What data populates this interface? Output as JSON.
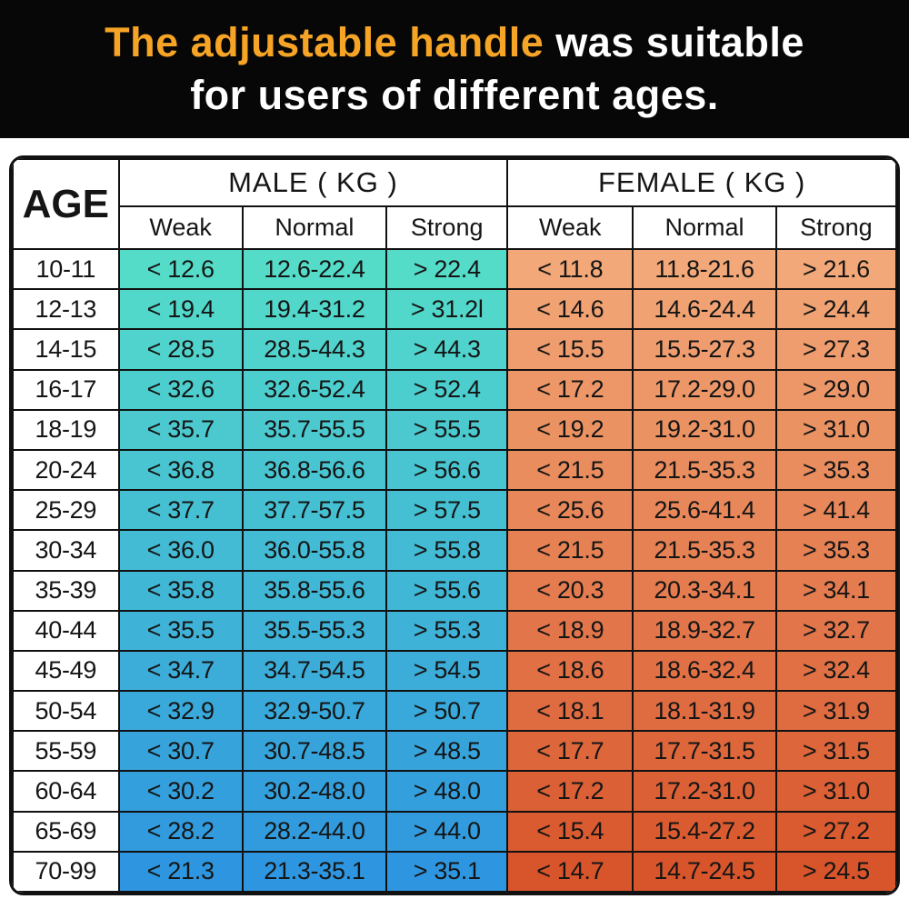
{
  "banner": {
    "title_highlight": "The adjustable handle",
    "title_rest": " was suitable",
    "title_line2": "for users of different ages.",
    "highlight_color": "#F6A426",
    "text_color": "#FFFFFF",
    "background": "#070707"
  },
  "table": {
    "age_header": "AGE",
    "group_headers": {
      "male": "MALE ( KG )",
      "female": "FEMALE ( KG )"
    },
    "sub_headers": [
      "Weak",
      "Normal",
      "Strong"
    ],
    "colors": {
      "male_gradient_top": "#55DCC9",
      "male_gradient_bottom": "#2E96E0",
      "female_gradient_top": "#F2A878",
      "female_gradient_bottom": "#D8552B",
      "border": "#111111",
      "header_bg": "#FFFFFF"
    }
  },
  "chart_data": {
    "type": "table",
    "title": "The adjustable handle was suitable for users of different ages.",
    "column_groups": [
      "AGE",
      "MALE (KG)",
      "FEMALE (KG)"
    ],
    "columns": [
      "AGE",
      "Male Weak",
      "Male Normal",
      "Male Strong",
      "Female Weak",
      "Female Normal",
      "Female Strong"
    ],
    "rows": [
      [
        "10-11",
        "< 12.6",
        "12.6-22.4",
        "> 22.4",
        "< 11.8",
        "11.8-21.6",
        "> 21.6"
      ],
      [
        "12-13",
        "< 19.4",
        "19.4-31.2",
        "> 31.2l",
        "< 14.6",
        "14.6-24.4",
        "> 24.4"
      ],
      [
        "14-15",
        "< 28.5",
        "28.5-44.3",
        "> 44.3",
        "< 15.5",
        "15.5-27.3",
        "> 27.3"
      ],
      [
        "16-17",
        "< 32.6",
        "32.6-52.4",
        "> 52.4",
        "< 17.2",
        "17.2-29.0",
        "> 29.0"
      ],
      [
        "18-19",
        "< 35.7",
        "35.7-55.5",
        "> 55.5",
        "< 19.2",
        "19.2-31.0",
        "> 31.0"
      ],
      [
        "20-24",
        "< 36.8",
        "36.8-56.6",
        "> 56.6",
        "< 21.5",
        "21.5-35.3",
        "> 35.3"
      ],
      [
        "25-29",
        "< 37.7",
        "37.7-57.5",
        "> 57.5",
        "< 25.6",
        "25.6-41.4",
        "> 41.4"
      ],
      [
        "30-34",
        "< 36.0",
        "36.0-55.8",
        "> 55.8",
        "< 21.5",
        "21.5-35.3",
        "> 35.3"
      ],
      [
        "35-39",
        "< 35.8",
        "35.8-55.6",
        "> 55.6",
        "< 20.3",
        "20.3-34.1",
        "> 34.1"
      ],
      [
        "40-44",
        "< 35.5",
        "35.5-55.3",
        "> 55.3",
        "< 18.9",
        "18.9-32.7",
        "> 32.7"
      ],
      [
        "45-49",
        "< 34.7",
        "34.7-54.5",
        "> 54.5",
        "< 18.6",
        "18.6-32.4",
        "> 32.4"
      ],
      [
        "50-54",
        "< 32.9",
        "32.9-50.7",
        "> 50.7",
        "< 18.1",
        "18.1-31.9",
        "> 31.9"
      ],
      [
        "55-59",
        "< 30.7",
        "30.7-48.5",
        "> 48.5",
        "< 17.7",
        "17.7-31.5",
        "> 31.5"
      ],
      [
        "60-64",
        "< 30.2",
        "30.2-48.0",
        "> 48.0",
        "< 17.2",
        "17.2-31.0",
        "> 31.0"
      ],
      [
        "65-69",
        "< 28.2",
        "28.2-44.0",
        "> 44.0",
        "< 15.4",
        "15.4-27.2",
        "> 27.2"
      ],
      [
        "70-99",
        "< 21.3",
        "21.3-35.1",
        "> 35.1",
        "< 14.7",
        "14.7-24.5",
        "> 24.5"
      ]
    ]
  }
}
